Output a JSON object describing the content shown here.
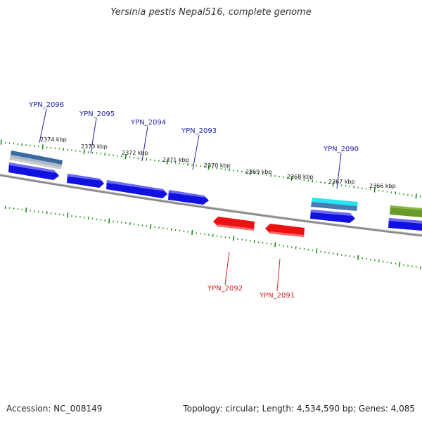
{
  "title": "Yersinia pestis Nepal516, complete genome",
  "footer": {
    "accession": "Accession: NC_008149",
    "summary": "Topology: circular; Length: 4,534,590 bp; Genes: 4,085"
  },
  "colors": {
    "forward_gene": "#1010e0",
    "reverse_gene": "#ee1111",
    "tick": "#1a8a1a",
    "backbone": "#808080",
    "forward_label": "#2222aa",
    "reverse_label": "#cc2222"
  },
  "scale_labels": [
    "2374 kbp",
    "2373 kbp",
    "2372 kbp",
    "2371 kbp",
    "2370 kbp",
    "2369 kbp",
    "2368 kbp",
    "2367 kbp",
    "2366 kbp"
  ],
  "forward_genes": [
    {
      "id": "g2096",
      "label": "YPN_2096"
    },
    {
      "id": "g2095",
      "label": "YPN_2095"
    },
    {
      "id": "g2094",
      "label": "YPN_2094"
    },
    {
      "id": "g2093",
      "label": "YPN_2093"
    },
    {
      "id": "g2090",
      "label": "YPN_2090"
    }
  ],
  "reverse_genes": [
    {
      "id": "g2092",
      "label": "YPN_2092"
    },
    {
      "id": "g2091",
      "label": "YPN_2091"
    }
  ]
}
